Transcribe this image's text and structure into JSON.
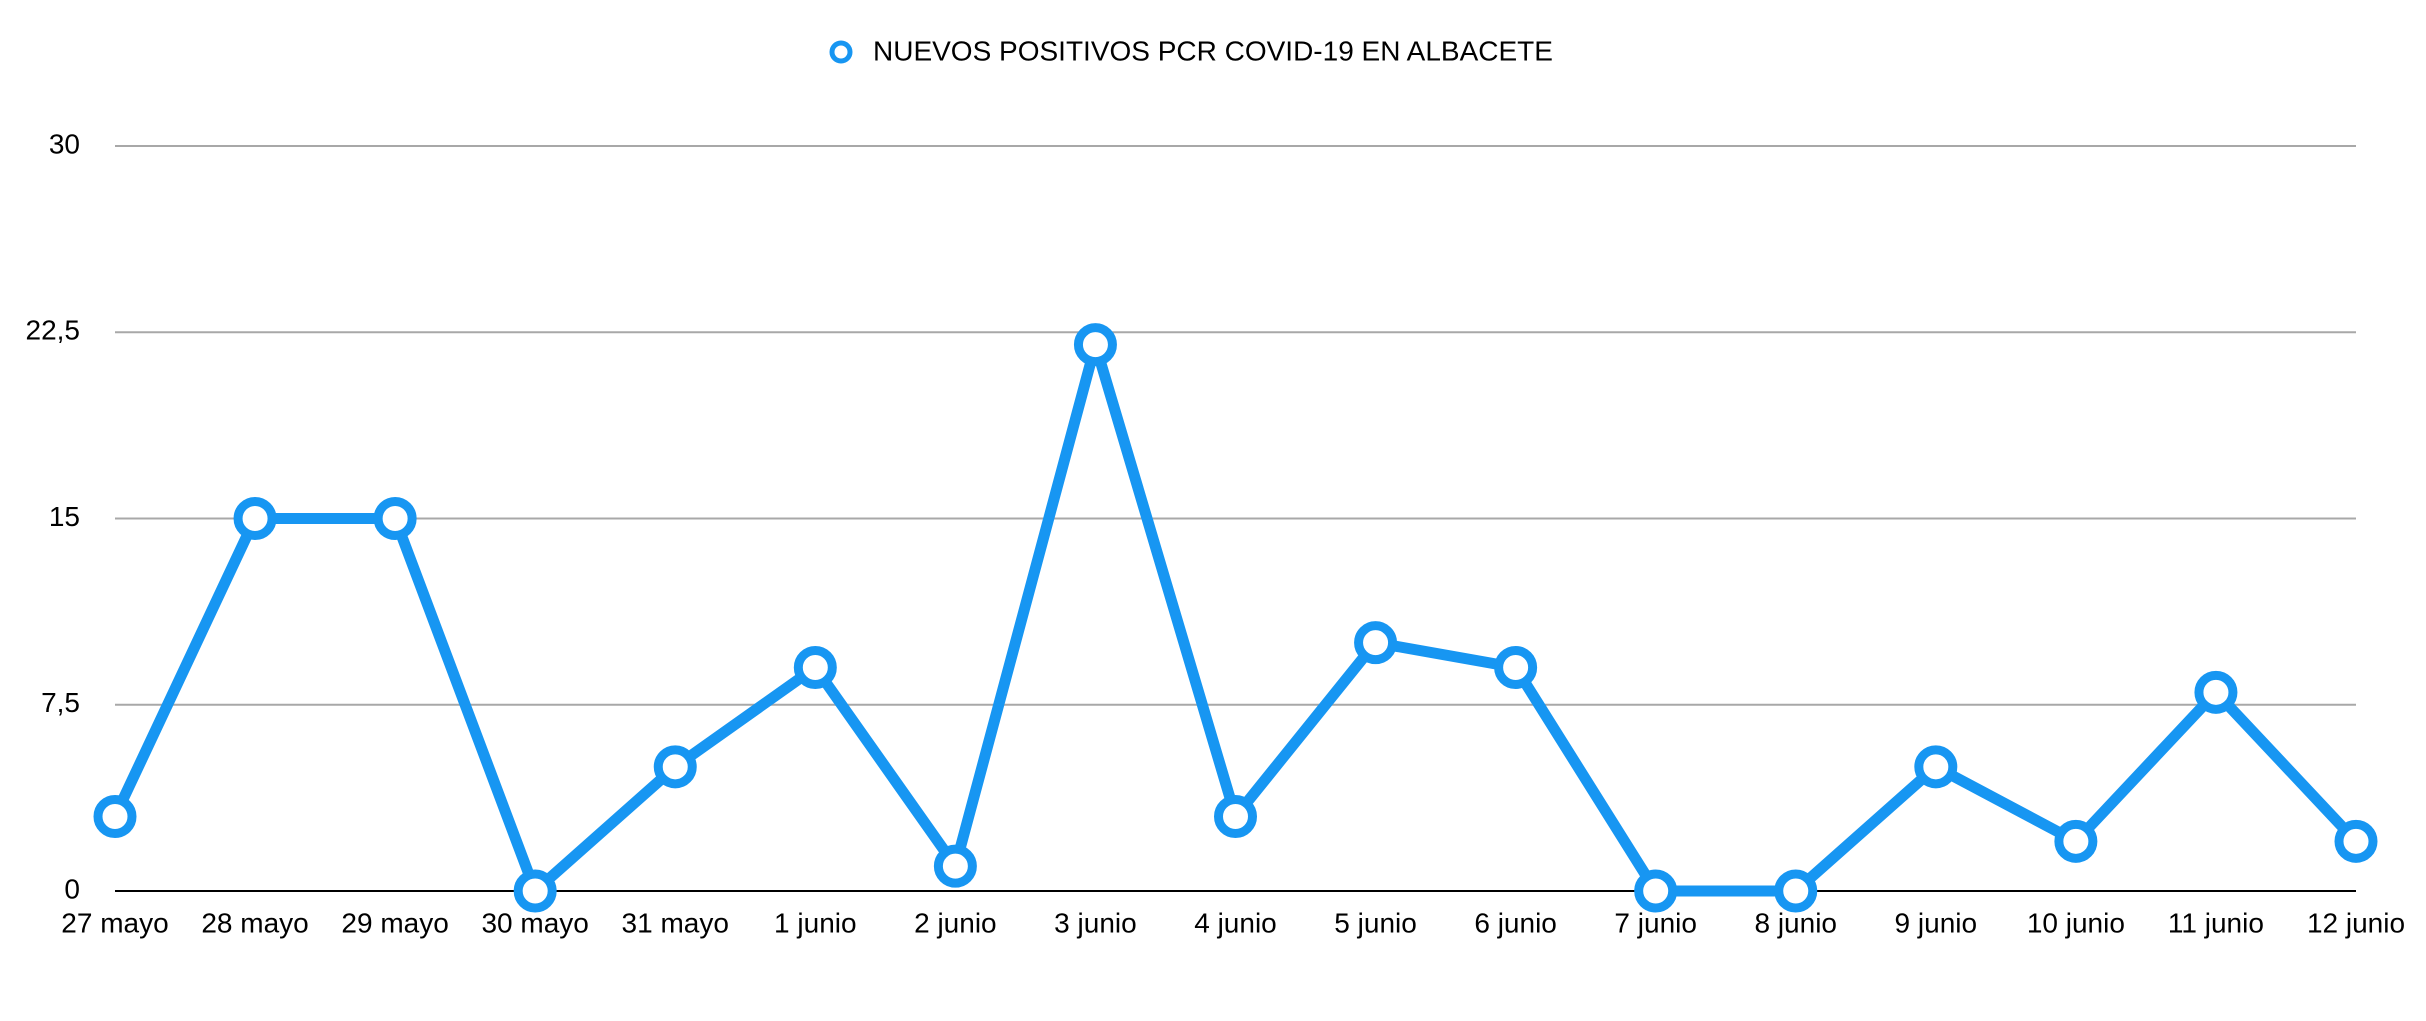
{
  "chart_data": {
    "type": "line",
    "categories": [
      "27 mayo",
      "28 mayo",
      "29 mayo",
      "30 mayo",
      "31 mayo",
      "1 junio",
      "2 junio",
      "3 junio",
      "4 junio",
      "5 junio",
      "6 junio",
      "7 junio",
      "8 junio",
      "9 junio",
      "10 junio",
      "11 junio",
      "12 junio"
    ],
    "series": [
      {
        "name": "NUEVOS POSITIVOS PCR COVID-19 EN ALBACETE",
        "color": "#1796f2",
        "values": [
          3,
          15,
          15,
          0,
          5,
          9,
          1,
          22,
          3,
          10,
          9,
          0,
          0,
          5,
          2,
          8,
          2
        ]
      }
    ],
    "ylim": [
      0,
      30
    ],
    "yticks": [
      0,
      {
        "value": 7.5,
        "label": "7,5"
      },
      15,
      {
        "value": 22.5,
        "label": "22,5"
      },
      30
    ],
    "grid": true,
    "legend": "top"
  }
}
